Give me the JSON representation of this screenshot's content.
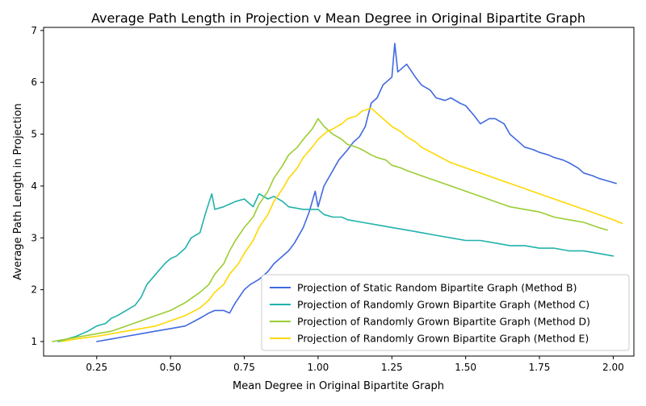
{
  "chart_data": {
    "type": "line",
    "title": "Average Path Length in Projection v Mean Degree in Original Bipartite Graph",
    "xlabel": "Mean Degree in Original Bipartite Graph",
    "ylabel": "Average Path Length in Projection",
    "xlim": [
      0.07,
      2.07
    ],
    "ylim": [
      0.72,
      7.06
    ],
    "xticks": [
      "0.25",
      "0.50",
      "0.75",
      "1.00",
      "1.25",
      "1.50",
      "1.75",
      "2.00"
    ],
    "xtick_values": [
      0.25,
      0.5,
      0.75,
      1.0,
      1.25,
      1.5,
      1.75,
      2.0
    ],
    "yticks": [
      "1",
      "2",
      "3",
      "4",
      "5",
      "6",
      "7"
    ],
    "ytick_values": [
      1,
      2,
      3,
      4,
      5,
      6,
      7
    ],
    "grid": false,
    "legend_position": "lower-right",
    "series": [
      {
        "name": "Projection of Static Random Bipartite Graph (Method B)",
        "color": "#4169e1",
        "x": [
          0.25,
          0.3,
          0.35,
          0.4,
          0.45,
          0.5,
          0.55,
          0.6,
          0.63,
          0.65,
          0.68,
          0.7,
          0.72,
          0.75,
          0.77,
          0.8,
          0.83,
          0.85,
          0.87,
          0.9,
          0.92,
          0.95,
          0.97,
          0.99,
          1.0,
          1.02,
          1.05,
          1.07,
          1.1,
          1.12,
          1.14,
          1.16,
          1.18,
          1.2,
          1.22,
          1.25,
          1.26,
          1.27,
          1.3,
          1.33,
          1.35,
          1.38,
          1.4,
          1.43,
          1.45,
          1.48,
          1.5,
          1.53,
          1.55,
          1.58,
          1.6,
          1.63,
          1.65,
          1.68,
          1.7,
          1.73,
          1.75,
          1.78,
          1.8,
          1.83,
          1.85,
          1.88,
          1.9,
          1.93,
          1.95,
          1.98,
          2.01
        ],
        "y": [
          1.0,
          1.05,
          1.1,
          1.15,
          1.2,
          1.25,
          1.3,
          1.45,
          1.55,
          1.6,
          1.6,
          1.55,
          1.75,
          2.0,
          2.1,
          2.2,
          2.35,
          2.5,
          2.6,
          2.75,
          2.9,
          3.2,
          3.5,
          3.9,
          3.6,
          4.0,
          4.3,
          4.5,
          4.7,
          4.85,
          4.95,
          5.15,
          5.6,
          5.7,
          5.95,
          6.1,
          6.75,
          6.2,
          6.35,
          6.1,
          5.95,
          5.85,
          5.7,
          5.65,
          5.7,
          5.6,
          5.55,
          5.35,
          5.2,
          5.3,
          5.3,
          5.2,
          5.0,
          4.85,
          4.75,
          4.7,
          4.65,
          4.6,
          4.55,
          4.5,
          4.45,
          4.35,
          4.25,
          4.2,
          4.15,
          4.1,
          4.05
        ]
      },
      {
        "name": "Projection of Randomly Grown Bipartite Graph (Method C)",
        "color": "#20b2aa",
        "x": [
          0.12,
          0.15,
          0.18,
          0.2,
          0.22,
          0.25,
          0.28,
          0.3,
          0.32,
          0.35,
          0.38,
          0.4,
          0.42,
          0.45,
          0.48,
          0.5,
          0.52,
          0.55,
          0.57,
          0.6,
          0.62,
          0.64,
          0.65,
          0.68,
          0.7,
          0.72,
          0.75,
          0.78,
          0.8,
          0.83,
          0.85,
          0.88,
          0.9,
          0.95,
          1.0,
          1.02,
          1.05,
          1.08,
          1.1,
          1.15,
          1.2,
          1.25,
          1.3,
          1.35,
          1.4,
          1.45,
          1.5,
          1.55,
          1.6,
          1.65,
          1.7,
          1.75,
          1.8,
          1.85,
          1.9,
          1.95,
          2.0
        ],
        "y": [
          1.0,
          1.05,
          1.1,
          1.15,
          1.2,
          1.3,
          1.35,
          1.45,
          1.5,
          1.6,
          1.7,
          1.85,
          2.1,
          2.3,
          2.5,
          2.6,
          2.65,
          2.8,
          3.0,
          3.1,
          3.5,
          3.85,
          3.55,
          3.6,
          3.65,
          3.7,
          3.75,
          3.6,
          3.85,
          3.75,
          3.8,
          3.7,
          3.6,
          3.55,
          3.55,
          3.45,
          3.4,
          3.4,
          3.35,
          3.3,
          3.25,
          3.2,
          3.15,
          3.1,
          3.05,
          3.0,
          2.95,
          2.95,
          2.9,
          2.85,
          2.85,
          2.8,
          2.8,
          2.75,
          2.75,
          2.7,
          2.65
        ]
      },
      {
        "name": "Projection of Randomly Grown Bipartite Graph (Method D)",
        "color": "#9acd32",
        "x": [
          0.1,
          0.15,
          0.2,
          0.25,
          0.3,
          0.35,
          0.4,
          0.45,
          0.5,
          0.55,
          0.6,
          0.63,
          0.65,
          0.68,
          0.7,
          0.72,
          0.75,
          0.78,
          0.8,
          0.83,
          0.85,
          0.88,
          0.9,
          0.93,
          0.95,
          0.98,
          1.0,
          1.02,
          1.05,
          1.08,
          1.1,
          1.13,
          1.15,
          1.18,
          1.2,
          1.23,
          1.25,
          1.28,
          1.3,
          1.35,
          1.4,
          1.45,
          1.5,
          1.55,
          1.6,
          1.65,
          1.7,
          1.75,
          1.8,
          1.85,
          1.9,
          1.95,
          1.98
        ],
        "y": [
          1.0,
          1.05,
          1.1,
          1.15,
          1.2,
          1.3,
          1.4,
          1.5,
          1.6,
          1.75,
          1.95,
          2.1,
          2.3,
          2.5,
          2.75,
          2.95,
          3.2,
          3.4,
          3.65,
          3.9,
          4.15,
          4.4,
          4.6,
          4.75,
          4.9,
          5.1,
          5.3,
          5.15,
          5.0,
          4.9,
          4.8,
          4.75,
          4.7,
          4.6,
          4.55,
          4.5,
          4.4,
          4.35,
          4.3,
          4.2,
          4.1,
          4.0,
          3.9,
          3.8,
          3.7,
          3.6,
          3.55,
          3.5,
          3.4,
          3.35,
          3.3,
          3.2,
          3.15
        ]
      },
      {
        "name": "Projection of Randomly Grown Bipartite Graph (Method E)",
        "color": "#ffd700",
        "x": [
          0.13,
          0.18,
          0.22,
          0.25,
          0.3,
          0.35,
          0.4,
          0.45,
          0.5,
          0.55,
          0.6,
          0.63,
          0.65,
          0.68,
          0.7,
          0.73,
          0.75,
          0.78,
          0.8,
          0.83,
          0.85,
          0.88,
          0.9,
          0.93,
          0.95,
          0.98,
          1.0,
          1.03,
          1.05,
          1.08,
          1.1,
          1.13,
          1.15,
          1.18,
          1.2,
          1.23,
          1.25,
          1.28,
          1.3,
          1.33,
          1.35,
          1.4,
          1.45,
          1.5,
          1.55,
          1.6,
          1.65,
          1.7,
          1.75,
          1.8,
          1.85,
          1.9,
          1.95,
          2.0,
          2.03
        ],
        "y": [
          1.0,
          1.05,
          1.08,
          1.1,
          1.15,
          1.2,
          1.25,
          1.3,
          1.4,
          1.5,
          1.65,
          1.8,
          1.95,
          2.1,
          2.3,
          2.5,
          2.7,
          2.95,
          3.2,
          3.45,
          3.7,
          3.95,
          4.15,
          4.35,
          4.55,
          4.75,
          4.9,
          5.05,
          5.1,
          5.2,
          5.3,
          5.35,
          5.45,
          5.5,
          5.4,
          5.25,
          5.15,
          5.05,
          4.95,
          4.85,
          4.75,
          4.6,
          4.45,
          4.35,
          4.25,
          4.15,
          4.05,
          3.95,
          3.85,
          3.75,
          3.65,
          3.55,
          3.45,
          3.35,
          3.28
        ]
      }
    ]
  }
}
